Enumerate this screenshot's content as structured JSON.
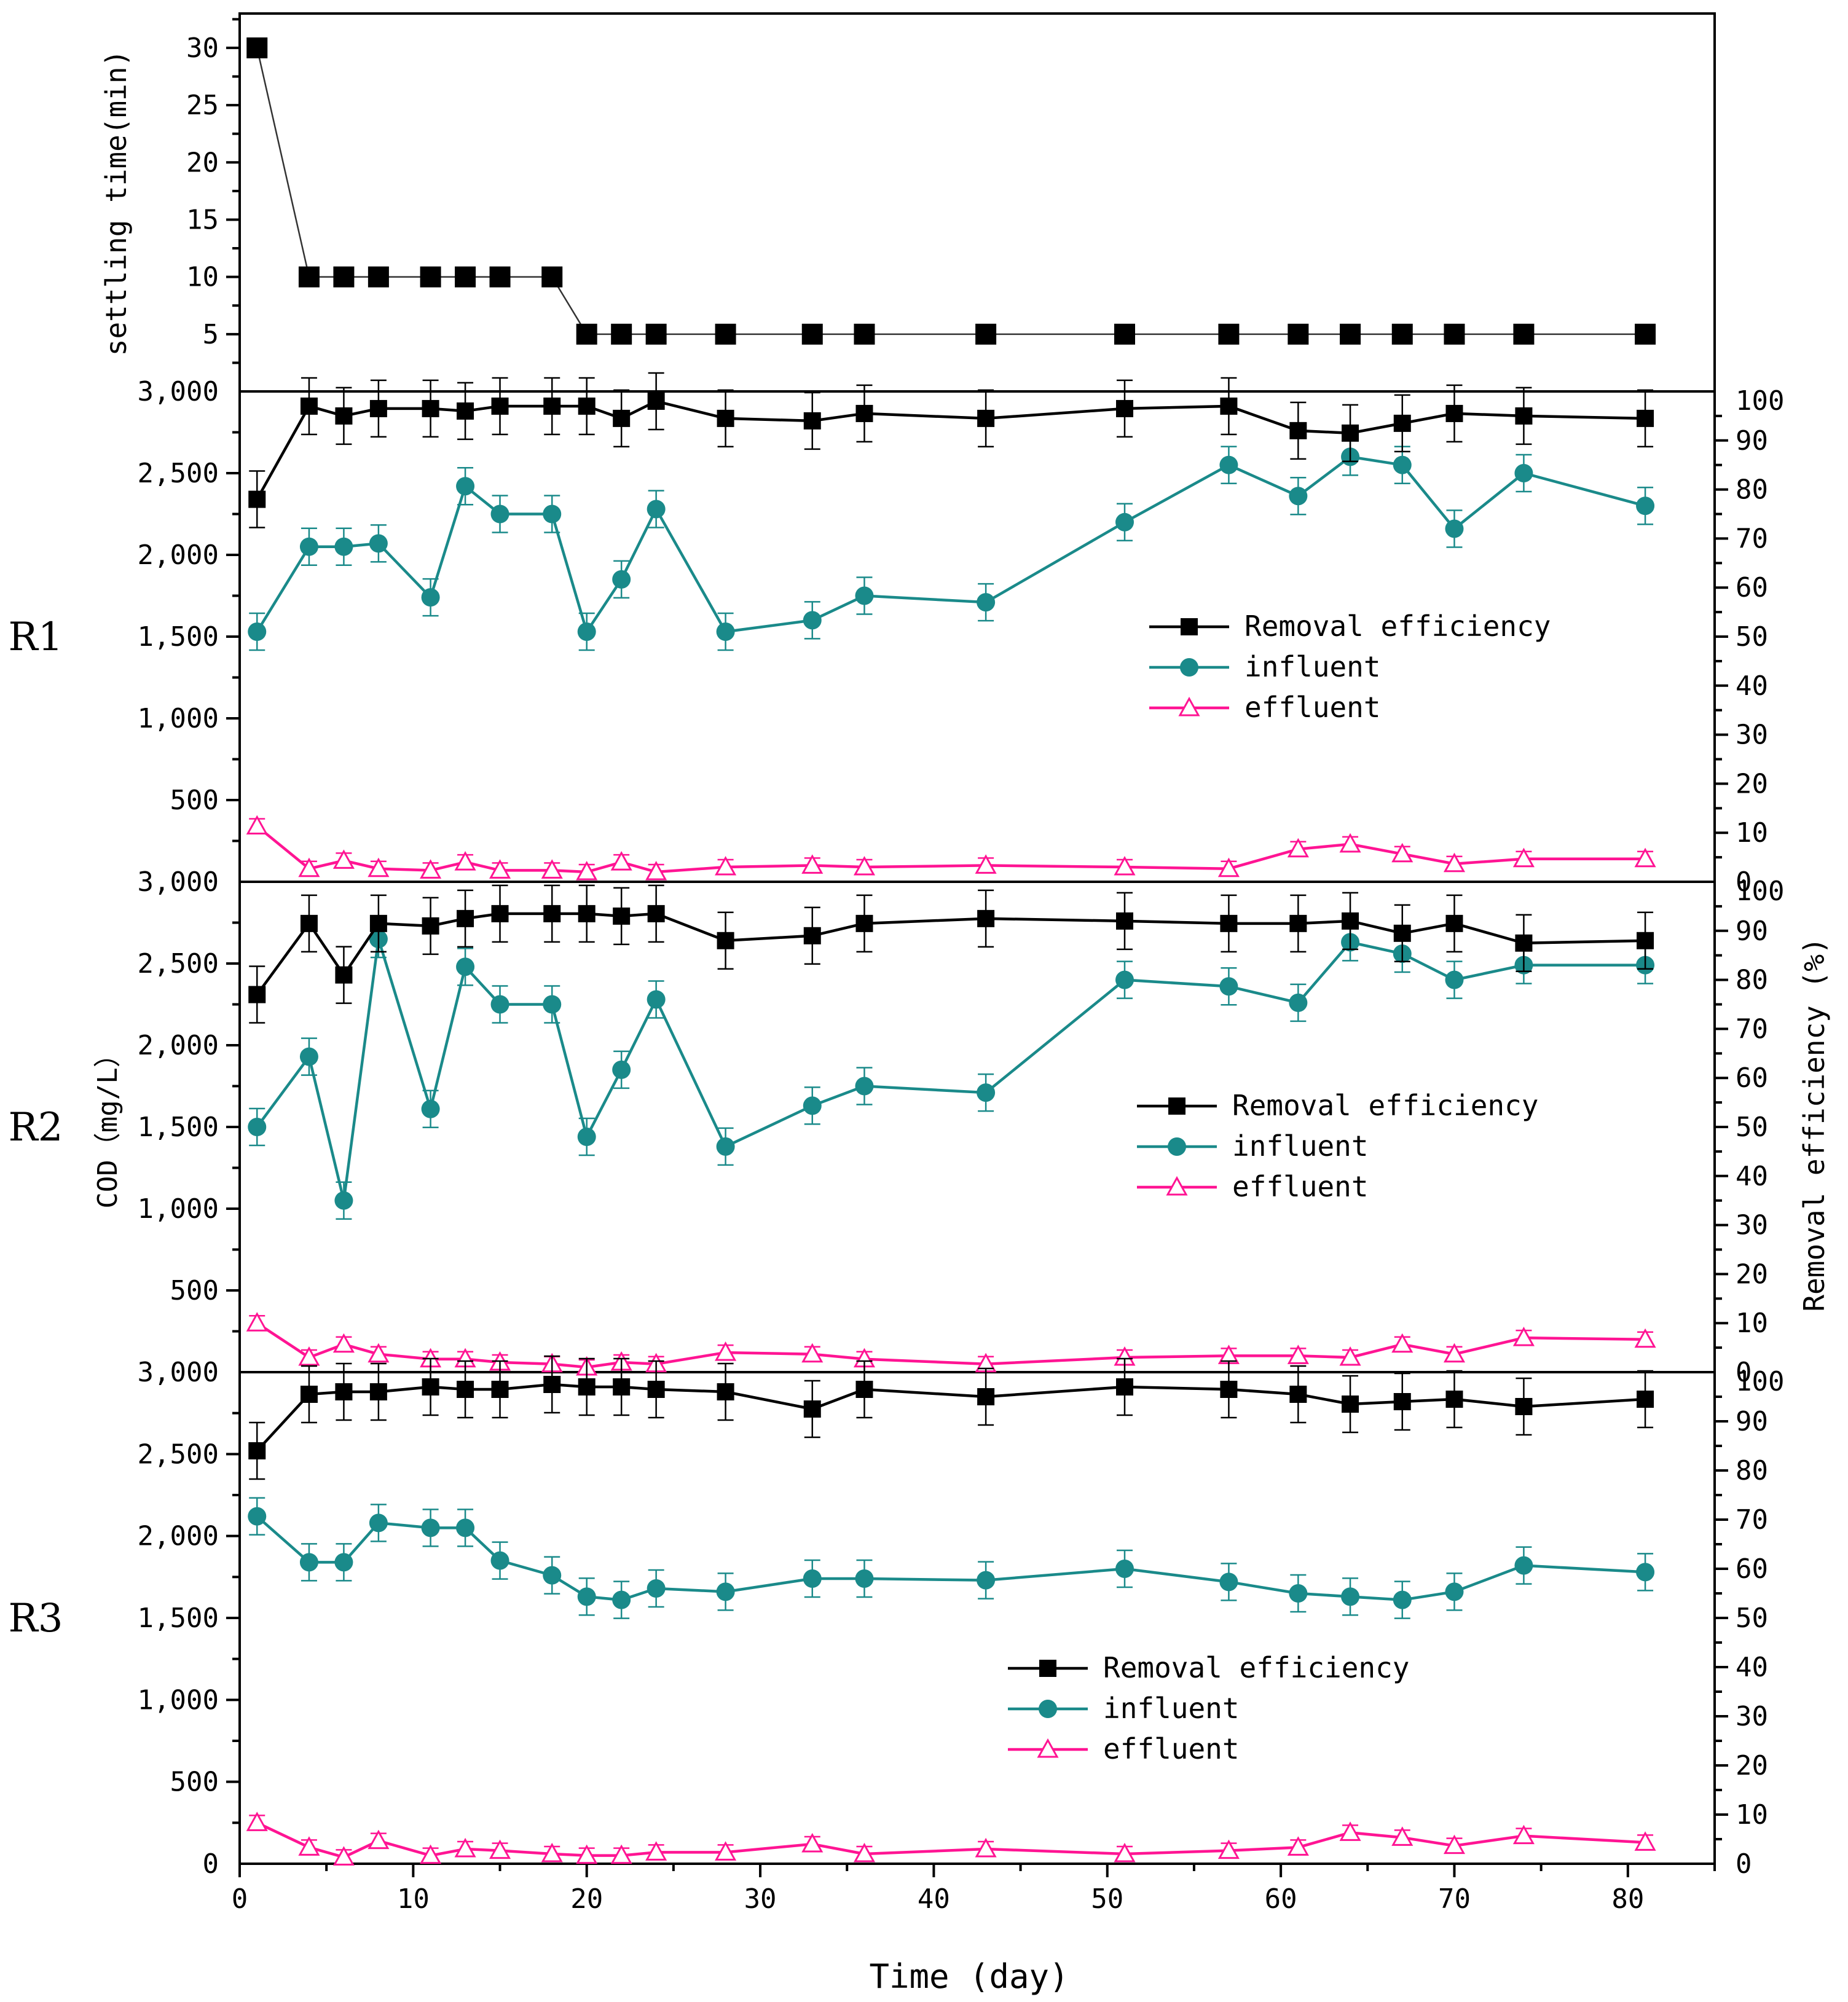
{
  "chart_data": {
    "type": "line",
    "x_label": "Time (day)",
    "x_ticks": [
      0,
      10,
      20,
      30,
      40,
      50,
      60,
      70,
      80
    ],
    "x_range": [
      0,
      85
    ],
    "colors": {
      "removal": "#000000",
      "influent": "#1a8a8a",
      "effluent": "#ff1493"
    },
    "settling": {
      "y_label": "settling time(min)",
      "y_range": [
        0,
        33
      ],
      "y_ticks": [
        5,
        10,
        15,
        20,
        25,
        30
      ],
      "x": [
        1,
        4,
        6,
        8,
        11,
        13,
        15,
        18,
        20,
        22,
        24,
        28,
        33,
        36,
        43,
        51,
        57,
        61,
        64,
        67,
        70,
        74,
        81
      ],
      "values": [
        30,
        10,
        10,
        10,
        10,
        10,
        10,
        10,
        5,
        5,
        5,
        5,
        5,
        5,
        5,
        5,
        5,
        5,
        5,
        5,
        5,
        5,
        5
      ]
    },
    "cod_axis_label": "COD（mg/L）",
    "re_axis_label": "Removal efficiency (%)",
    "legend_labels": {
      "removal": "Removal efficiency",
      "influent": "influent",
      "effluent": "effluent"
    },
    "reactors": [
      {
        "label": "R1",
        "cod_range": [
          0,
          3000
        ],
        "cod_ticks": [
          "",
          "500",
          "1,000",
          "1,500",
          "2,000",
          "2,500",
          "3,000"
        ],
        "re_range": [
          0,
          100
        ],
        "re_ticks": [
          "0",
          "10",
          "20",
          "30",
          "40",
          "50",
          "60",
          "70",
          "80",
          "90",
          "100"
        ],
        "x": [
          1,
          4,
          6,
          8,
          11,
          13,
          15,
          18,
          20,
          22,
          24,
          28,
          33,
          36,
          43,
          51,
          57,
          61,
          64,
          67,
          70,
          74,
          81
        ],
        "influent": [
          1530,
          2050,
          2050,
          2070,
          1740,
          2420,
          2250,
          2250,
          1530,
          1850,
          2280,
          1530,
          1600,
          1750,
          1710,
          2200,
          2550,
          2360,
          2600,
          2550,
          2160,
          2500,
          2300
        ],
        "effluent": [
          340,
          80,
          130,
          80,
          70,
          120,
          70,
          70,
          60,
          120,
          60,
          90,
          100,
          90,
          100,
          90,
          80,
          200,
          230,
          170,
          110,
          140,
          140
        ],
        "removal": [
          78,
          97,
          95,
          96.5,
          96.5,
          96,
          97,
          97,
          97,
          94.5,
          98,
          94.5,
          94,
          95.5,
          94.5,
          96.5,
          97,
          92,
          91.5,
          93.5,
          95.5,
          95,
          94.5
        ]
      },
      {
        "label": "R2",
        "cod_range": [
          0,
          3000
        ],
        "cod_ticks": [
          "",
          "500",
          "1,000",
          "1,500",
          "2,000",
          "2,500",
          "3,000"
        ],
        "re_range": [
          0,
          100
        ],
        "re_ticks": [
          "0",
          "10",
          "20",
          "30",
          "40",
          "50",
          "60",
          "70",
          "80",
          "90",
          "100"
        ],
        "x": [
          1,
          4,
          6,
          8,
          11,
          13,
          15,
          18,
          20,
          22,
          24,
          28,
          33,
          36,
          43,
          51,
          57,
          61,
          64,
          67,
          70,
          74,
          81
        ],
        "influent": [
          1500,
          1930,
          1050,
          2650,
          1610,
          2480,
          2250,
          2250,
          1440,
          1850,
          2280,
          1380,
          1630,
          1750,
          1710,
          2400,
          2360,
          2260,
          2630,
          2560,
          2400,
          2490,
          2490
        ],
        "effluent": [
          300,
          90,
          170,
          110,
          80,
          80,
          60,
          50,
          30,
          60,
          50,
          120,
          110,
          80,
          50,
          90,
          100,
          100,
          90,
          170,
          110,
          210,
          200
        ],
        "removal": [
          77,
          91.5,
          81,
          91.5,
          91,
          92.5,
          93.5,
          93.5,
          93.5,
          93,
          93.5,
          88,
          89,
          91.5,
          92.5,
          92,
          91.5,
          91.5,
          92,
          89.5,
          91.5,
          87.5,
          88
        ]
      },
      {
        "label": "R3",
        "cod_range": [
          0,
          3000
        ],
        "cod_ticks": [
          "0",
          "500",
          "1,000",
          "1,500",
          "2,000",
          "2,500",
          "3,000"
        ],
        "re_range": [
          0,
          100
        ],
        "re_ticks": [
          "0",
          "10",
          "20",
          "30",
          "40",
          "50",
          "60",
          "70",
          "80",
          "90",
          "100"
        ],
        "x": [
          1,
          4,
          6,
          8,
          11,
          13,
          15,
          18,
          20,
          22,
          24,
          28,
          33,
          36,
          43,
          51,
          57,
          61,
          64,
          67,
          70,
          74,
          81
        ],
        "influent": [
          2120,
          1840,
          1840,
          2080,
          2050,
          2050,
          1850,
          1760,
          1630,
          1610,
          1680,
          1660,
          1740,
          1740,
          1730,
          1800,
          1720,
          1650,
          1630,
          1610,
          1660,
          1820,
          1780
        ],
        "effluent": [
          250,
          100,
          40,
          140,
          50,
          90,
          80,
          60,
          50,
          50,
          70,
          70,
          120,
          60,
          90,
          60,
          80,
          100,
          190,
          160,
          110,
          170,
          130
        ],
        "removal": [
          84,
          95.5,
          96,
          96,
          97,
          96.5,
          96.5,
          97.5,
          97,
          97,
          96.5,
          96,
          92.5,
          96.5,
          95,
          97,
          96.5,
          95.5,
          93.5,
          94,
          94.5,
          93,
          94.5
        ]
      }
    ]
  }
}
